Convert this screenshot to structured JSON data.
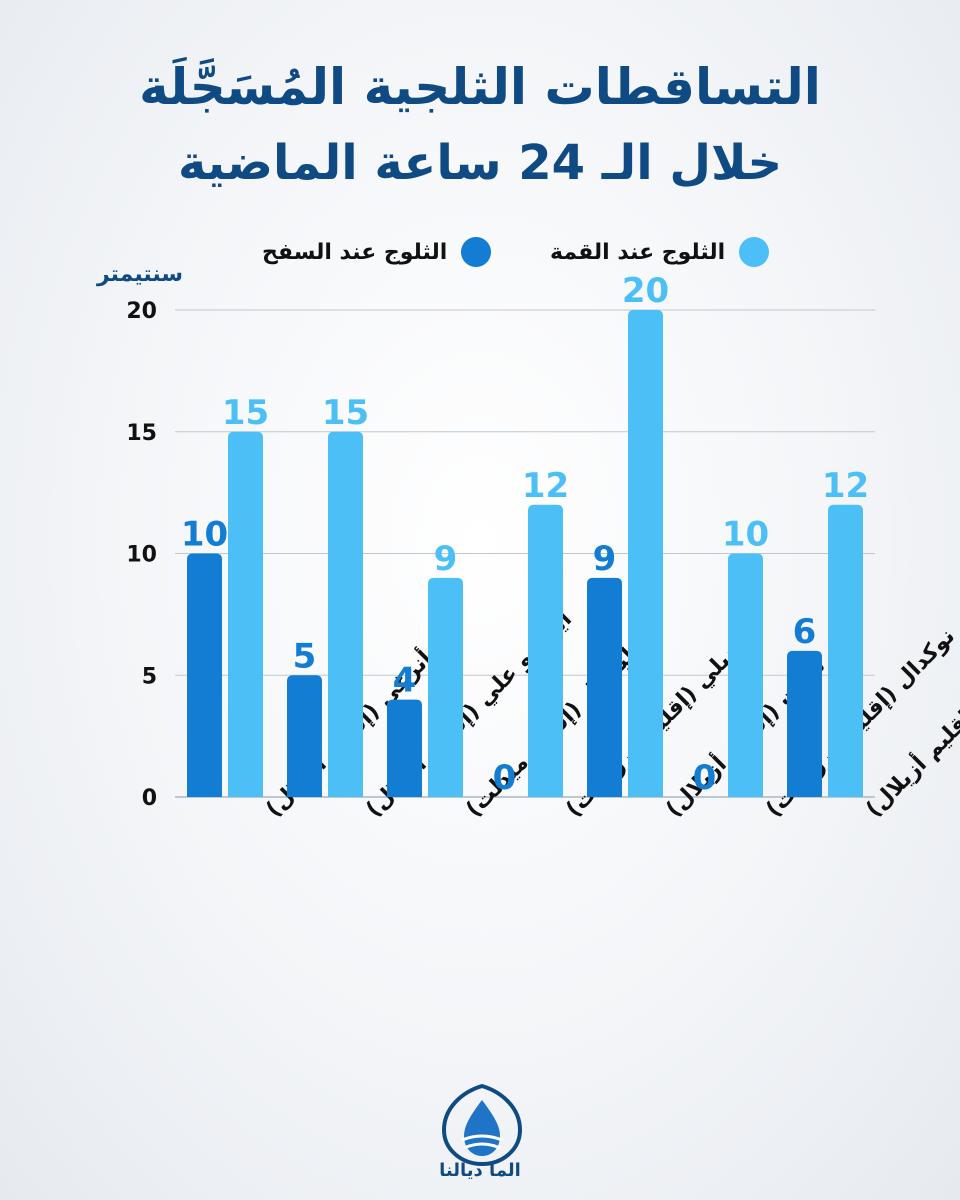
{
  "header": {
    "title_line1": "التساقطات الثلجية المُسَجَّلَة",
    "title_line2": "خلال الـ 24 ساعة الماضية"
  },
  "legend": {
    "summit_label": "الثلوج عند القمة",
    "base_label": "الثلوج عند السفح"
  },
  "unit": "سنتيمتر",
  "colors": {
    "summit": "#4cc0f6",
    "base": "#137cd3",
    "title": "#0f4b82",
    "axis": "#bfc8d2"
  },
  "brand": {
    "name": "الما ديالنا"
  },
  "chart_data": {
    "type": "bar",
    "categories": [
      "أنرغي (إقليم أزيلال)",
      "أيت بو علي (إقليم أزيلال)",
      "إمليشيل (إقليم ميدلت)",
      "تيديلي (إقليم ورزازات)",
      "تبانت (إقليم أزيلال)",
      "إغرم نوكدال (إقليم ورزازات)",
      "زاوية أحنصال (إقليم أزيلال)"
    ],
    "series": [
      {
        "name": "الثلوج عند السفح",
        "color": "#137cd3",
        "values": [
          10,
          5,
          4,
          0,
          9,
          0,
          6
        ]
      },
      {
        "name": "الثلوج عند القمة",
        "color": "#4cc0f6",
        "values": [
          15,
          15,
          9,
          12,
          20,
          10,
          12
        ]
      }
    ],
    "ylabel": "سنتيمتر",
    "ylim": [
      0,
      20
    ],
    "yticks": [
      0,
      5,
      10,
      15,
      20
    ],
    "grid": true,
    "legend_position": "top"
  }
}
